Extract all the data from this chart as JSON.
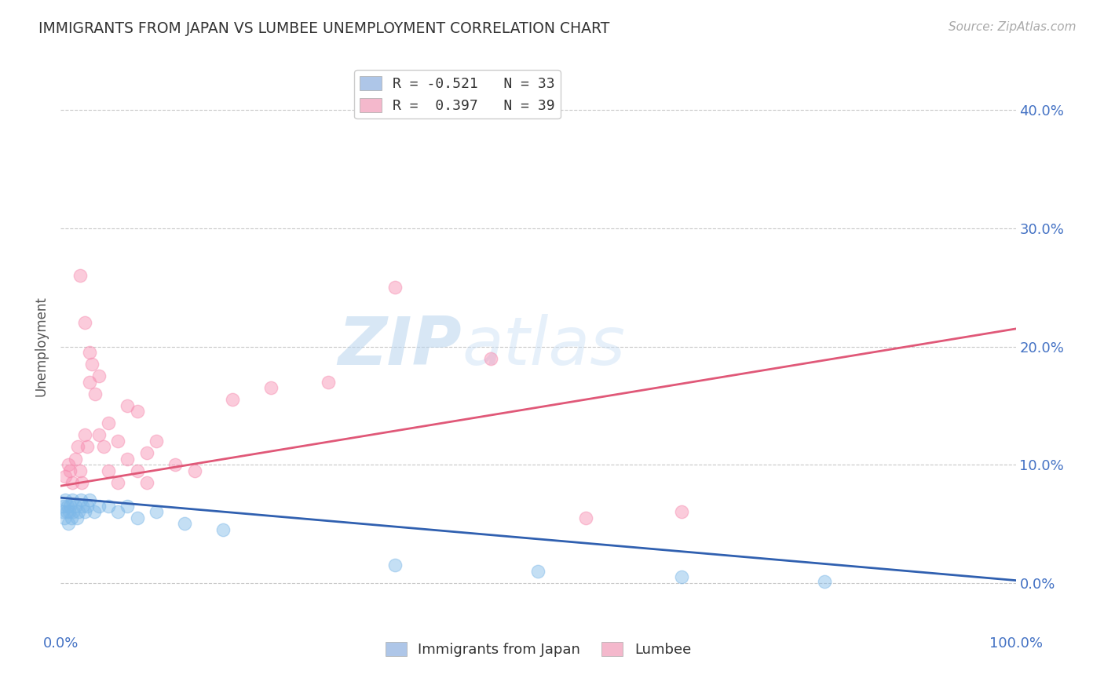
{
  "title": "IMMIGRANTS FROM JAPAN VS LUMBEE UNEMPLOYMENT CORRELATION CHART",
  "source_text": "Source: ZipAtlas.com",
  "ylabel": "Unemployment",
  "xlim": [
    0,
    1.0
  ],
  "ylim": [
    -0.04,
    0.44
  ],
  "yticks": [
    0.0,
    0.1,
    0.2,
    0.3,
    0.4
  ],
  "ytick_labels": [
    "0.0%",
    "10.0%",
    "20.0%",
    "30.0%",
    "40.0%"
  ],
  "xticks": [
    0.0,
    0.25,
    0.5,
    0.75,
    1.0
  ],
  "xtick_labels": [
    "0.0%",
    "",
    "",
    "",
    "100.0%"
  ],
  "legend1_label": "R = -0.521   N = 33",
  "legend2_label": "R =  0.397   N = 39",
  "legend_japan_color": "#aec6e8",
  "legend_lumbee_color": "#f4b8cc",
  "japan_color": "#7db8e8",
  "lumbee_color": "#f78cb0",
  "japan_line_color": "#3060b0",
  "lumbee_line_color": "#e05878",
  "background_color": "#ffffff",
  "watermark_text": "ZIPatlas",
  "japan_points_x": [
    0.002,
    0.003,
    0.004,
    0.005,
    0.006,
    0.007,
    0.008,
    0.009,
    0.01,
    0.011,
    0.012,
    0.013,
    0.015,
    0.017,
    0.019,
    0.021,
    0.023,
    0.025,
    0.028,
    0.03,
    0.035,
    0.04,
    0.05,
    0.06,
    0.07,
    0.08,
    0.1,
    0.13,
    0.17,
    0.35,
    0.5,
    0.65,
    0.8
  ],
  "japan_points_y": [
    0.06,
    0.065,
    0.055,
    0.07,
    0.06,
    0.065,
    0.05,
    0.06,
    0.065,
    0.055,
    0.07,
    0.06,
    0.065,
    0.055,
    0.06,
    0.07,
    0.065,
    0.06,
    0.065,
    0.07,
    0.06,
    0.065,
    0.065,
    0.06,
    0.065,
    0.055,
    0.06,
    0.05,
    0.045,
    0.015,
    0.01,
    0.005,
    0.001
  ],
  "lumbee_points_x": [
    0.005,
    0.008,
    0.01,
    0.012,
    0.015,
    0.018,
    0.02,
    0.022,
    0.025,
    0.028,
    0.03,
    0.033,
    0.036,
    0.04,
    0.045,
    0.05,
    0.06,
    0.07,
    0.08,
    0.09,
    0.1,
    0.12,
    0.14,
    0.18,
    0.22,
    0.28,
    0.35,
    0.45,
    0.55,
    0.65,
    0.02,
    0.025,
    0.03,
    0.04,
    0.05,
    0.06,
    0.07,
    0.08,
    0.09
  ],
  "lumbee_points_y": [
    0.09,
    0.1,
    0.095,
    0.085,
    0.105,
    0.115,
    0.095,
    0.085,
    0.125,
    0.115,
    0.17,
    0.185,
    0.16,
    0.125,
    0.115,
    0.095,
    0.085,
    0.15,
    0.145,
    0.11,
    0.12,
    0.1,
    0.095,
    0.155,
    0.165,
    0.17,
    0.25,
    0.19,
    0.055,
    0.06,
    0.26,
    0.22,
    0.195,
    0.175,
    0.135,
    0.12,
    0.105,
    0.095,
    0.085
  ],
  "japan_line_x0": 0.0,
  "japan_line_y0": 0.072,
  "japan_line_x1": 1.0,
  "japan_line_y1": 0.002,
  "lumbee_line_x0": 0.0,
  "lumbee_line_y0": 0.082,
  "lumbee_line_x1": 1.0,
  "lumbee_line_y1": 0.215
}
